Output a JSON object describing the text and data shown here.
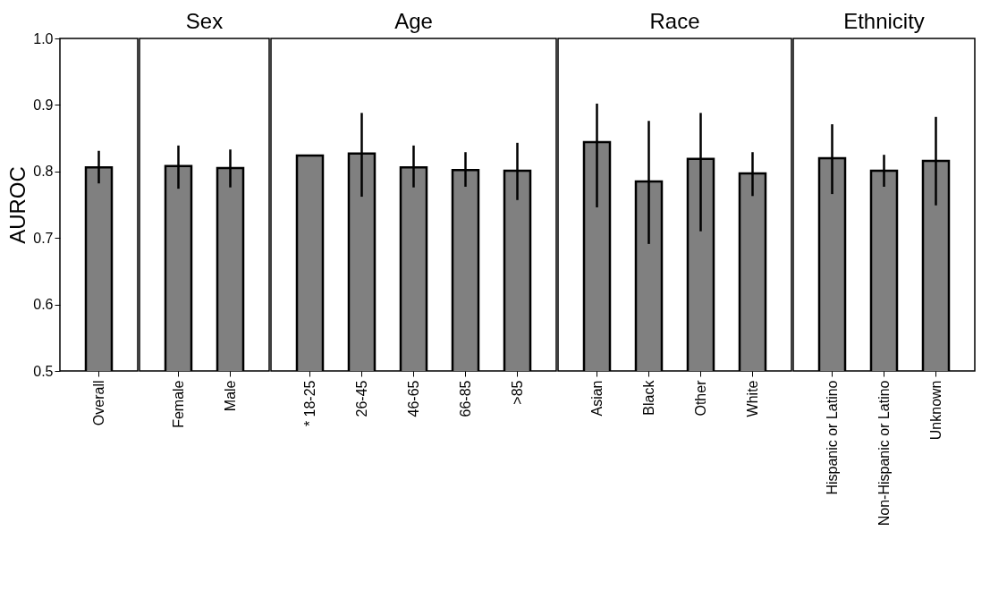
{
  "chart_data": [
    {
      "type": "bar",
      "categories": [
        "Overall"
      ],
      "values": [
        0.806
      ],
      "errors": [
        [
          0.782,
          0.831
        ]
      ],
      "color": "#808080",
      "ylabel": "AUROC",
      "ylim": [
        0.5,
        1.0
      ],
      "yticks": [
        0.5,
        0.6,
        0.7,
        0.8,
        0.9,
        {
          "value": 1.0,
          "label": "1.0"
        }
      ],
      "grid": false
    },
    {
      "type": "bar",
      "title": "Sex",
      "categories": [
        "Female",
        "Male"
      ],
      "values": [
        0.808,
        0.805
      ],
      "errors": [
        [
          0.774,
          0.839
        ],
        [
          0.776,
          0.833
        ]
      ],
      "color": "#808080",
      "ylim": [
        0.5,
        1.0
      ],
      "tick_labels": "x",
      "grid": false
    },
    {
      "type": "bar",
      "title": "Age",
      "categories": [
        "* 18-25",
        "26-45",
        "46-65",
        "66-85",
        ">85"
      ],
      "values": [
        0.824,
        0.827,
        0.806,
        0.802,
        0.801
      ],
      "errors": [
        null,
        [
          0.762,
          0.888
        ],
        [
          0.776,
          0.839
        ],
        [
          0.777,
          0.829
        ],
        [
          0.757,
          0.843
        ]
      ],
      "color": "#808080",
      "ylim": [
        0.5,
        1.0
      ],
      "tick_labels": "x",
      "grid": false
    },
    {
      "type": "bar",
      "title": "Race",
      "categories": [
        "Asian",
        "Black",
        "Other",
        "White"
      ],
      "values": [
        0.844,
        0.785,
        0.819,
        0.797
      ],
      "errors": [
        [
          0.746,
          0.902
        ],
        [
          0.691,
          0.876
        ],
        [
          0.71,
          0.888
        ],
        [
          0.763,
          0.829
        ]
      ],
      "color": "#808080",
      "ylim": [
        0.5,
        1.0
      ],
      "tick_labels": "x",
      "grid": false
    },
    {
      "type": "bar",
      "title": "Ethnicity",
      "categories": [
        "Hispanic or Latino",
        "Non-Hispanic or Latino",
        "Unknown"
      ],
      "values": [
        0.82,
        0.801,
        0.816
      ],
      "errors": [
        [
          0.766,
          0.871
        ],
        [
          0.777,
          0.825
        ],
        [
          0.749,
          0.882
        ]
      ],
      "color": "#808080",
      "ylim": [
        0.5,
        1.0
      ],
      "tick_labels": "x",
      "grid": false
    }
  ]
}
